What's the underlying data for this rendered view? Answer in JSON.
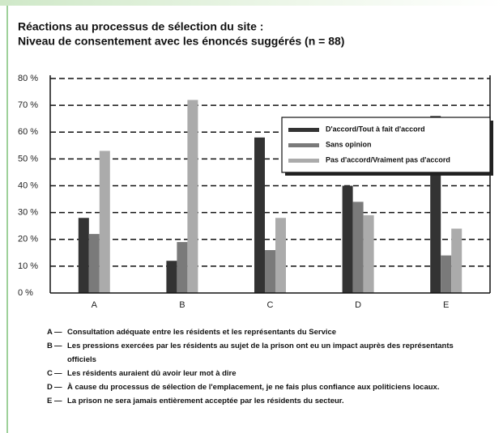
{
  "chart_data": {
    "type": "bar",
    "title": "Réactions au processus de sélection du site :",
    "subtitle": "Niveau de consentement avec les énoncés suggérés (n = 88)",
    "categories": [
      "A",
      "B",
      "C",
      "D",
      "E"
    ],
    "series": [
      {
        "name": "D'accord/Tout à fait d'accord",
        "color": "#333333",
        "values": [
          28,
          12,
          58,
          40,
          66
        ]
      },
      {
        "name": "Sans opinion",
        "color": "#7a7a7a",
        "values": [
          22,
          19,
          16,
          34,
          14
        ]
      },
      {
        "name": "Pas d'accord/Vraiment pas d'accord",
        "color": "#ababab",
        "values": [
          53,
          72,
          28,
          29,
          24
        ]
      }
    ],
    "ylim": [
      0,
      80
    ],
    "yticks": [
      {
        "value": 0,
        "label": "0 %"
      },
      {
        "value": 10,
        "label": "10 %"
      },
      {
        "value": 20,
        "label": "20 %"
      },
      {
        "value": 30,
        "label": "30 %"
      },
      {
        "value": 40,
        "label": "40 %"
      },
      {
        "value": 50,
        "label": "50 %"
      },
      {
        "value": 60,
        "label": "60 %"
      },
      {
        "value": 70,
        "label": "70 %"
      },
      {
        "value": 80,
        "label": "80 %"
      }
    ],
    "grid": true,
    "legend": "upper right",
    "notes": [
      {
        "letter": "A",
        "text": "Consultation adéquate entre les résidents et les représentants du Service"
      },
      {
        "letter": "B",
        "text": "Les pressions exercées par les résidents au sujet de la prison ont eu un impact auprès des représentants officiels"
      },
      {
        "letter": "C",
        "text": "Les résidents auraient dû avoir leur mot à dire"
      },
      {
        "letter": "D",
        "text": "À cause du processus de sélection de l'emplacement, je ne fais plus confiance aux politiciens locaux."
      },
      {
        "letter": "E",
        "text": "La prison ne sera jamais entièrement acceptée par les résidents du secteur."
      }
    ]
  }
}
